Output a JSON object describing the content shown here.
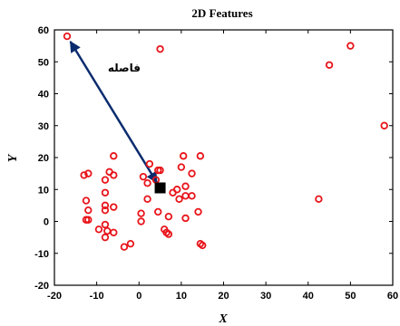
{
  "chart_data": {
    "type": "scatter",
    "title": "2D Features",
    "xlabel": "X",
    "ylabel": "Y",
    "xlim": [
      -20,
      60
    ],
    "ylim": [
      -20,
      60
    ],
    "xticks": [
      -20,
      -10,
      0,
      10,
      20,
      30,
      40,
      50,
      60
    ],
    "yticks": [
      -20,
      -10,
      0,
      10,
      20,
      30,
      40,
      50,
      60
    ],
    "grid": false,
    "series": [
      {
        "marker": "circle",
        "color": "#e8141a",
        "points": [
          [
            -17,
            58
          ],
          [
            5,
            54
          ],
          [
            50,
            55
          ],
          [
            45,
            49
          ],
          [
            58,
            30
          ],
          [
            42.5,
            7
          ],
          [
            -13,
            14.5
          ],
          [
            -12,
            15
          ],
          [
            -6,
            20.5
          ],
          [
            -7,
            15.5
          ],
          [
            -6,
            14.5
          ],
          [
            -8,
            13
          ],
          [
            -8,
            9
          ],
          [
            -12.5,
            6.5
          ],
          [
            -12,
            3.5
          ],
          [
            -8,
            5
          ],
          [
            -8,
            3.5
          ],
          [
            -6,
            4.5
          ],
          [
            -12.5,
            0.5
          ],
          [
            -12,
            0.5
          ],
          [
            -9.5,
            -2.5
          ],
          [
            -8,
            -1
          ],
          [
            -7.5,
            -3
          ],
          [
            -8,
            -5
          ],
          [
            -6,
            -3.5
          ],
          [
            -3.5,
            -8
          ],
          [
            -2,
            -7
          ],
          [
            0.5,
            2.5
          ],
          [
            0.5,
            0
          ],
          [
            1,
            14
          ],
          [
            2,
            12
          ],
          [
            2,
            7
          ],
          [
            2.5,
            18
          ],
          [
            4,
            13
          ],
          [
            4.5,
            16
          ],
          [
            5,
            16
          ],
          [
            4.5,
            3
          ],
          [
            6,
            -2.5
          ],
          [
            7,
            -4
          ],
          [
            6.5,
            -3.5
          ],
          [
            7,
            1.5
          ],
          [
            8,
            9
          ],
          [
            9,
            10
          ],
          [
            9.5,
            7
          ],
          [
            10,
            17
          ],
          [
            10.5,
            20.5
          ],
          [
            11,
            11
          ],
          [
            11,
            8
          ],
          [
            11,
            1
          ],
          [
            12.5,
            8
          ],
          [
            12.5,
            15
          ],
          [
            14,
            3
          ],
          [
            14.5,
            20.5
          ],
          [
            14.5,
            -7
          ],
          [
            15,
            -7.5
          ]
        ]
      },
      {
        "name": "",
        "marker": "square",
        "color": "#000000",
        "points": [
          [
            5,
            10.5
          ]
        ]
      }
    ],
    "annotations": [
      {
        "text": "فاصله",
        "arrow": {
          "from": [
            -17,
            58
          ],
          "to": [
            5,
            10.5
          ],
          "heads": "both",
          "color": "#0a2b6e"
        },
        "text_at": [
          -3.5,
          47
        ]
      }
    ]
  }
}
